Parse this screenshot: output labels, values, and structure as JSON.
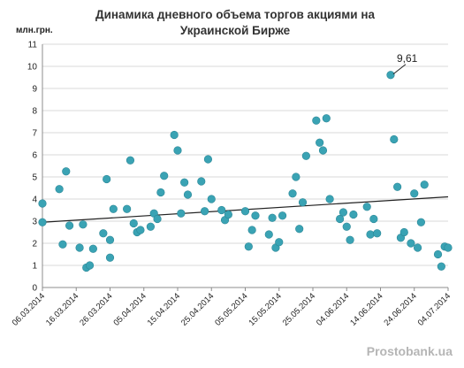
{
  "watermark": "Prostobank.ua",
  "chart_data": {
    "type": "scatter",
    "title": [
      "Динамика дневного объема торгов акциями на",
      "Украинской Бирже"
    ],
    "ylabel": "млн.грн.",
    "xlabel": "",
    "ylim": [
      0,
      11
    ],
    "yticks": [
      0,
      1,
      2,
      3,
      4,
      5,
      6,
      7,
      8,
      9,
      10,
      11
    ],
    "xlim": [
      "2014-03-06",
      "2014-07-04"
    ],
    "xtick_labels": [
      "06.03.2014",
      "16.03.2014",
      "26.03.2014",
      "05.04.2014",
      "15.04.2014",
      "25.04.2014",
      "05.05.2014",
      "15.05.2014",
      "25.05.2014",
      "04.06.2014",
      "14.06.2014",
      "24.06.2014",
      "04.07.2014"
    ],
    "grid": "horizontal",
    "marker_color": "#3aa3b4",
    "trendline": {
      "from": [
        "2014-03-06",
        2.95
      ],
      "to": [
        "2014-07-04",
        4.1
      ],
      "color": "#222222"
    },
    "annotation": {
      "text": "9,61",
      "x": "2014-06-17",
      "y": 9.61
    },
    "points": [
      [
        "2014-03-06",
        3.8
      ],
      [
        "2014-03-06",
        2.95
      ],
      [
        "2014-03-11",
        4.45
      ],
      [
        "2014-03-12",
        1.95
      ],
      [
        "2014-03-13",
        5.25
      ],
      [
        "2014-03-14",
        2.8
      ],
      [
        "2014-03-17",
        1.8
      ],
      [
        "2014-03-18",
        2.85
      ],
      [
        "2014-03-19",
        0.9
      ],
      [
        "2014-03-20",
        1.0
      ],
      [
        "2014-03-21",
        1.75
      ],
      [
        "2014-03-24",
        2.45
      ],
      [
        "2014-03-25",
        4.9
      ],
      [
        "2014-03-26",
        2.15
      ],
      [
        "2014-03-26",
        1.35
      ],
      [
        "2014-03-27",
        3.55
      ],
      [
        "2014-03-31",
        3.55
      ],
      [
        "2014-04-01",
        5.75
      ],
      [
        "2014-04-02",
        2.9
      ],
      [
        "2014-04-03",
        2.5
      ],
      [
        "2014-04-04",
        2.6
      ],
      [
        "2014-04-07",
        2.75
      ],
      [
        "2014-04-08",
        3.35
      ],
      [
        "2014-04-09",
        3.1
      ],
      [
        "2014-04-10",
        4.3
      ],
      [
        "2014-04-11",
        5.05
      ],
      [
        "2014-04-14",
        6.9
      ],
      [
        "2014-04-15",
        6.2
      ],
      [
        "2014-04-16",
        3.35
      ],
      [
        "2014-04-17",
        4.75
      ],
      [
        "2014-04-18",
        4.2
      ],
      [
        "2014-04-22",
        4.8
      ],
      [
        "2014-04-23",
        3.45
      ],
      [
        "2014-04-24",
        5.8
      ],
      [
        "2014-04-25",
        4.0
      ],
      [
        "2014-04-28",
        3.5
      ],
      [
        "2014-04-29",
        3.05
      ],
      [
        "2014-04-30",
        3.3
      ],
      [
        "2014-05-05",
        3.45
      ],
      [
        "2014-05-06",
        1.85
      ],
      [
        "2014-05-07",
        2.6
      ],
      [
        "2014-05-08",
        3.25
      ],
      [
        "2014-05-12",
        2.4
      ],
      [
        "2014-05-13",
        3.15
      ],
      [
        "2014-05-14",
        1.8
      ],
      [
        "2014-05-15",
        2.05
      ],
      [
        "2014-05-16",
        3.25
      ],
      [
        "2014-05-19",
        4.25
      ],
      [
        "2014-05-20",
        5.0
      ],
      [
        "2014-05-21",
        2.65
      ],
      [
        "2014-05-22",
        3.85
      ],
      [
        "2014-05-23",
        5.95
      ],
      [
        "2014-05-26",
        7.55
      ],
      [
        "2014-05-27",
        6.55
      ],
      [
        "2014-05-28",
        6.2
      ],
      [
        "2014-05-29",
        7.65
      ],
      [
        "2014-05-30",
        4.0
      ],
      [
        "2014-06-02",
        3.1
      ],
      [
        "2014-06-03",
        3.4
      ],
      [
        "2014-06-04",
        2.75
      ],
      [
        "2014-06-05",
        2.15
      ],
      [
        "2014-06-06",
        3.3
      ],
      [
        "2014-06-10",
        3.65
      ],
      [
        "2014-06-11",
        2.4
      ],
      [
        "2014-06-12",
        3.1
      ],
      [
        "2014-06-13",
        2.45
      ],
      [
        "2014-06-17",
        9.61
      ],
      [
        "2014-06-18",
        6.7
      ],
      [
        "2014-06-19",
        4.55
      ],
      [
        "2014-06-20",
        2.25
      ],
      [
        "2014-06-21",
        2.5
      ],
      [
        "2014-06-23",
        2.0
      ],
      [
        "2014-06-24",
        4.25
      ],
      [
        "2014-06-25",
        1.8
      ],
      [
        "2014-06-26",
        2.95
      ],
      [
        "2014-06-27",
        4.65
      ],
      [
        "2014-07-01",
        1.5
      ],
      [
        "2014-07-02",
        0.95
      ],
      [
        "2014-07-03",
        1.85
      ],
      [
        "2014-07-04",
        1.8
      ]
    ]
  }
}
